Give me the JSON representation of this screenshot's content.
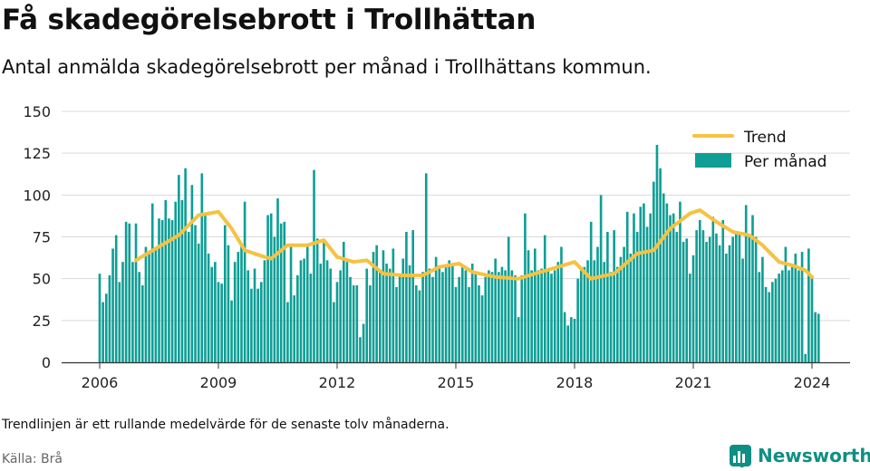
{
  "title": "Få skadegörelsebrott i Trollhättan",
  "subtitle": "Antal anmälda skadegörelsebrott per månad i Trollhättans kommun.",
  "note": "Trendlinjen är ett rullande medelvärde för de senaste tolv månaderna.",
  "source": "Källa: Brå",
  "brand": "Newsworthy",
  "colors": {
    "bars": "#0e9e95",
    "trend": "#f5c242",
    "grid": "#d9d9d9",
    "axis": "#333333",
    "brand": "#0f8f83"
  },
  "chart_data": {
    "type": "bar",
    "x_start": "2006-01",
    "x_end": "2024-01",
    "x_ticks": [
      "2006",
      "2009",
      "2012",
      "2015",
      "2018",
      "2021",
      "2024"
    ],
    "y_ticks": [
      0,
      25,
      50,
      75,
      100,
      125,
      150
    ],
    "ylim": [
      0,
      150
    ],
    "grid": true,
    "legend_position": "top-right",
    "series": [
      {
        "name": "Per månad",
        "type": "bar",
        "start": "2006-01",
        "values": [
          53,
          36,
          41,
          52,
          68,
          76,
          48,
          60,
          84,
          83,
          60,
          83,
          54,
          46,
          69,
          65,
          95,
          68,
          86,
          85,
          97,
          86,
          85,
          96,
          112,
          97,
          116,
          78,
          106,
          82,
          71,
          113,
          89,
          65,
          57,
          60,
          48,
          47,
          82,
          70,
          37,
          60,
          66,
          71,
          96,
          55,
          44,
          56,
          44,
          48,
          61,
          88,
          89,
          75,
          98,
          83,
          84,
          36,
          70,
          40,
          52,
          61,
          62,
          70,
          53,
          115,
          74,
          59,
          72,
          61,
          56,
          36,
          48,
          55,
          72,
          60,
          51,
          46,
          46,
          15,
          23,
          56,
          46,
          66,
          70,
          54,
          67,
          59,
          56,
          68,
          45,
          53,
          62,
          78,
          58,
          79,
          46,
          43,
          54,
          113,
          56,
          51,
          63,
          58,
          54,
          58,
          61,
          58,
          45,
          51,
          58,
          55,
          45,
          59,
          53,
          46,
          40,
          51,
          55,
          54,
          62,
          54,
          57,
          55,
          75,
          55,
          52,
          27,
          52,
          89,
          67,
          55,
          68,
          55,
          56,
          76,
          55,
          53,
          55,
          60,
          69,
          30,
          22,
          27,
          26,
          50,
          55,
          57,
          61,
          84,
          61,
          69,
          100,
          60,
          78,
          54,
          79,
          57,
          63,
          69,
          90,
          65,
          89,
          78,
          93,
          95,
          81,
          89,
          108,
          130,
          116,
          101,
          95,
          88,
          89,
          78,
          96,
          72,
          74,
          53,
          64,
          79,
          85,
          79,
          72,
          75,
          87,
          77,
          70,
          85,
          65,
          70,
          75,
          78,
          77,
          62,
          94,
          75,
          88,
          75,
          54,
          63,
          45,
          42,
          48,
          50,
          53,
          55,
          69,
          55,
          57,
          65,
          55,
          66,
          5,
          68,
          52,
          30,
          29
        ]
      },
      {
        "name": "Trend",
        "type": "line",
        "anchors": [
          [
            "2006-12",
            61
          ],
          [
            "2007-06",
            68
          ],
          [
            "2008-01",
            76
          ],
          [
            "2008-07",
            88
          ],
          [
            "2009-01",
            90
          ],
          [
            "2009-05",
            80
          ],
          [
            "2009-09",
            67
          ],
          [
            "2010-03",
            63
          ],
          [
            "2010-05",
            62
          ],
          [
            "2010-10",
            70
          ],
          [
            "2011-04",
            70
          ],
          [
            "2011-09",
            73
          ],
          [
            "2012-01",
            63
          ],
          [
            "2012-06",
            60
          ],
          [
            "2012-10",
            61
          ],
          [
            "2013-03",
            53
          ],
          [
            "2013-09",
            52
          ],
          [
            "2014-03",
            52
          ],
          [
            "2014-08",
            57
          ],
          [
            "2015-02",
            59
          ],
          [
            "2015-06",
            54
          ],
          [
            "2016-01",
            51
          ],
          [
            "2016-08",
            50
          ],
          [
            "2017-01",
            53
          ],
          [
            "2017-08",
            57
          ],
          [
            "2018-01",
            60
          ],
          [
            "2018-06",
            50
          ],
          [
            "2019-01",
            53
          ],
          [
            "2019-08",
            65
          ],
          [
            "2020-01",
            67
          ],
          [
            "2020-06",
            80
          ],
          [
            "2020-12",
            89
          ],
          [
            "2021-03",
            91
          ],
          [
            "2021-08",
            84
          ],
          [
            "2022-01",
            78
          ],
          [
            "2022-06",
            76
          ],
          [
            "2022-10",
            70
          ],
          [
            "2023-03",
            60
          ],
          [
            "2023-07",
            58
          ],
          [
            "2023-11",
            55
          ],
          [
            "2024-01",
            51
          ]
        ]
      }
    ]
  }
}
